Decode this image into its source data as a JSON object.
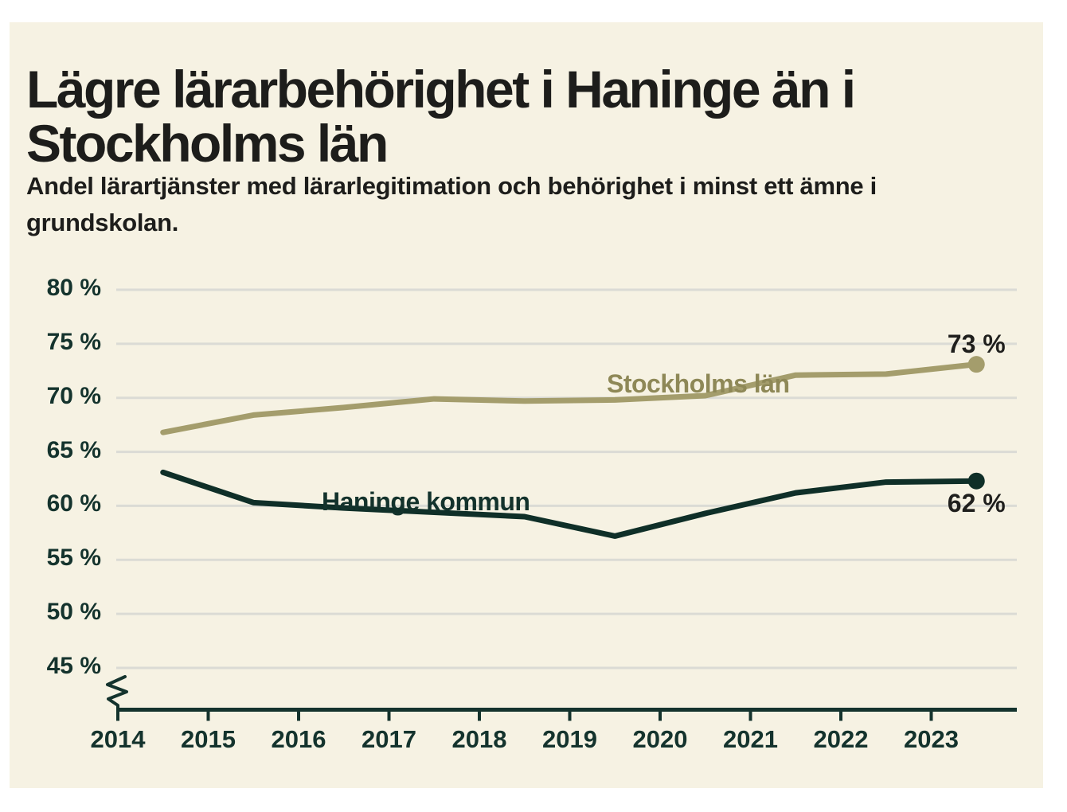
{
  "header": {
    "title": "Lägre lärarbehörighet i Haninge än i\nStockholms län",
    "subtitle": "Andel lärartjänster med lärarlegitimation och behörighet i minst ett ämne i\ngrundskolan."
  },
  "colors": {
    "background": "#ffffff",
    "panel": "#f6f2e3",
    "title_text": "#1d1d1b",
    "axis": "#14332d",
    "gridline": "#dbdbd5",
    "value_label": "#1f1f1d"
  },
  "chart_data": {
    "type": "line",
    "title": "Lägre lärarbehörighet i Haninge än i Stockholms län",
    "subtitle": "Andel lärartjänster med lärarlegitimation och behörighet i minst ett ämne i grundskolan.",
    "xlabel": "",
    "ylabel": "",
    "grid": true,
    "y_axis_break": true,
    "ylim": [
      45,
      80
    ],
    "x": [
      2014.5,
      2015.5,
      2016.5,
      2017.5,
      2018.5,
      2019.5,
      2020.5,
      2021.5,
      2022.5,
      2023.5
    ],
    "x_tick_years": [
      2014,
      2015,
      2016,
      2017,
      2018,
      2019,
      2020,
      2021,
      2022,
      2023
    ],
    "x_tick_labels": [
      "2014",
      "2015",
      "2016",
      "2017",
      "2018",
      "2019",
      "2020",
      "2021",
      "2022",
      "2023"
    ],
    "y_ticks": [
      80,
      75,
      70,
      65,
      60,
      55,
      50,
      45
    ],
    "y_tick_labels": [
      "80 %",
      "75 %",
      "70 %",
      "65 %",
      "60 %",
      "55 %",
      "50 %",
      "45 %"
    ],
    "series": [
      {
        "id": "stockholms-lan",
        "name": "Stockholms län",
        "color": "#a49d6c",
        "label_color": "#8e8857",
        "values": [
          66.8,
          68.4,
          69.1,
          69.9,
          69.7,
          69.8,
          70.2,
          72.1,
          72.2,
          73.1
        ],
        "end_label": "73 %"
      },
      {
        "id": "haninge-kommun",
        "name": "Haninge kommun",
        "color": "#0f2f28",
        "label_color": "#13322c",
        "values": [
          63.1,
          60.3,
          59.8,
          59.4,
          59.0,
          57.2,
          59.3,
          61.2,
          62.2,
          62.3
        ],
        "end_label": "62 %"
      }
    ]
  }
}
